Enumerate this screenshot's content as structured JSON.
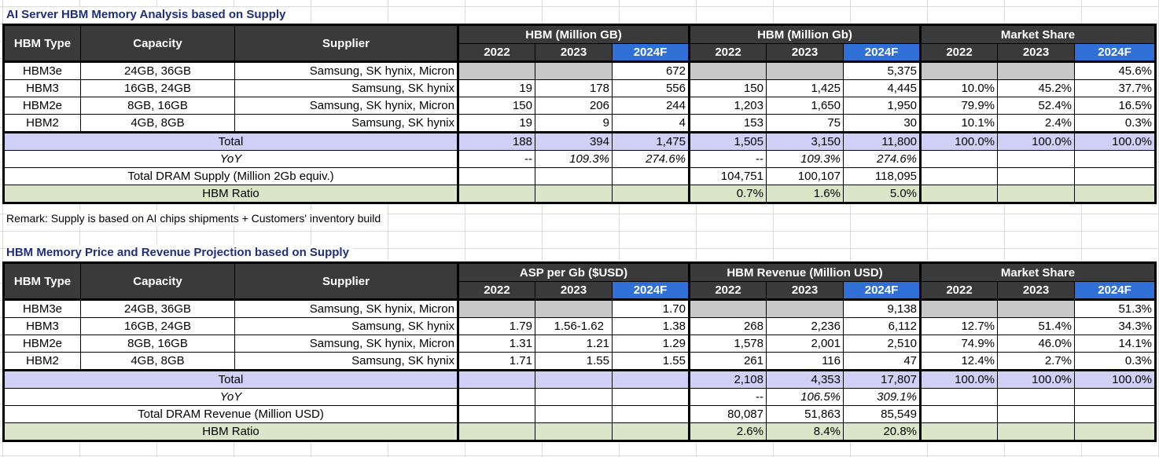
{
  "table1": {
    "title": "AI Server HBM Memory Analysis based on Supply",
    "header": {
      "hbm_type": "HBM Type",
      "capacity": "Capacity",
      "supplier": "Supplier",
      "group1": "HBM (Million GB)",
      "group2": "HBM (Million Gb)",
      "group3": "Market Share",
      "years": [
        "2022",
        "2023",
        "2024F"
      ]
    },
    "rows": [
      {
        "type": "HBM3e",
        "capacity": "24GB, 36GB",
        "supplier": "Samsung, SK hynix, Micron",
        "g1": [
          "",
          "",
          "672"
        ],
        "g2": [
          "",
          "",
          "5,375"
        ],
        "g3": [
          "",
          "",
          "45.6%"
        ]
      },
      {
        "type": "HBM3",
        "capacity": "16GB, 24GB",
        "supplier": "Samsung, SK hynix",
        "g1": [
          "19",
          "178",
          "556"
        ],
        "g2": [
          "150",
          "1,425",
          "4,445"
        ],
        "g3": [
          "10.0%",
          "45.2%",
          "37.7%"
        ]
      },
      {
        "type": "HBM2e",
        "capacity": "8GB, 16GB",
        "supplier": "Samsung, SK hynix, Micron",
        "g1": [
          "150",
          "206",
          "244"
        ],
        "g2": [
          "1,203",
          "1,650",
          "1,950"
        ],
        "g3": [
          "79.9%",
          "52.4%",
          "16.5%"
        ]
      },
      {
        "type": "HBM2",
        "capacity": "4GB, 8GB",
        "supplier": "Samsung, SK hynix",
        "g1": [
          "19",
          "9",
          "4"
        ],
        "g2": [
          "153",
          "75",
          "30"
        ],
        "g3": [
          "10.1%",
          "2.4%",
          "0.3%"
        ]
      }
    ],
    "total": {
      "label": "Total",
      "g1": [
        "188",
        "394",
        "1,475"
      ],
      "g2": [
        "1,505",
        "3,150",
        "11,800"
      ],
      "g3": [
        "100.0%",
        "100.0%",
        "100.0%"
      ]
    },
    "yoy": {
      "label": "YoY",
      "g1": [
        "--",
        "109.3%",
        "274.6%"
      ],
      "g2": [
        "--",
        "109.3%",
        "274.6%"
      ]
    },
    "dram": {
      "label": "Total DRAM Supply (Million 2Gb equiv.)",
      "g2": [
        "104,751",
        "100,107",
        "118,095"
      ]
    },
    "ratio": {
      "label": "HBM Ratio",
      "g2": [
        "0.7%",
        "1.6%",
        "5.0%"
      ]
    },
    "remark": "Remark: Supply is based on AI chips shipments + Customers' inventory build"
  },
  "table2": {
    "title": "HBM Memory Price and Revenue Projection based on Supply",
    "header": {
      "hbm_type": "HBM Type",
      "capacity": "Capacity",
      "supplier": "Supplier",
      "group1": "ASP per Gb ($USD)",
      "group2": "HBM Revenue (Million USD)",
      "group3": "Market Share",
      "years": [
        "2022",
        "2023",
        "2024F"
      ]
    },
    "rows": [
      {
        "type": "HBM3e",
        "capacity": "24GB, 36GB",
        "supplier": "Samsung, SK hynix, Micron",
        "g1": [
          "",
          "",
          "1.70"
        ],
        "g2": [
          "",
          "",
          "9,138"
        ],
        "g3": [
          "",
          "",
          "51.3%"
        ]
      },
      {
        "type": "HBM3",
        "capacity": "16GB, 24GB",
        "supplier": "Samsung, SK hynix",
        "g1": [
          "1.79",
          "1.56-1.62",
          "1.38"
        ],
        "g2": [
          "268",
          "2,236",
          "6,112"
        ],
        "g3": [
          "12.7%",
          "51.4%",
          "34.3%"
        ]
      },
      {
        "type": "HBM2e",
        "capacity": "8GB, 16GB",
        "supplier": "Samsung, SK hynix, Micron",
        "g1": [
          "1.31",
          "1.21",
          "1.29"
        ],
        "g2": [
          "1,578",
          "2,001",
          "2,510"
        ],
        "g3": [
          "74.9%",
          "46.0%",
          "14.1%"
        ]
      },
      {
        "type": "HBM2",
        "capacity": "4GB, 8GB",
        "supplier": "Samsung, SK hynix",
        "g1": [
          "1.71",
          "1.55",
          "1.55"
        ],
        "g2": [
          "261",
          "116",
          "47"
        ],
        "g3": [
          "12.4%",
          "2.7%",
          "0.3%"
        ]
      }
    ],
    "total": {
      "label": "Total",
      "g2": [
        "2,108",
        "4,353",
        "17,807"
      ],
      "g3": [
        "100.0%",
        "100.0%",
        "100.0%"
      ]
    },
    "yoy": {
      "label": "YoY",
      "g2": [
        "--",
        "106.5%",
        "309.1%"
      ]
    },
    "dram": {
      "label": "Total DRAM Revenue (Million USD)",
      "g2": [
        "80,087",
        "51,863",
        "85,549"
      ]
    },
    "ratio": {
      "label": "HBM Ratio",
      "g2": [
        "2.6%",
        "8.4%",
        "20.8%"
      ]
    }
  },
  "colors": {
    "header_dark": "#3a3a3a",
    "header_forecast": "#2f6fd6",
    "total_row": "#d0d0f7",
    "ratio_row": "#dbe5c8",
    "empty_cell": "#c8c8c8",
    "title_text": "#1f2f7a"
  }
}
